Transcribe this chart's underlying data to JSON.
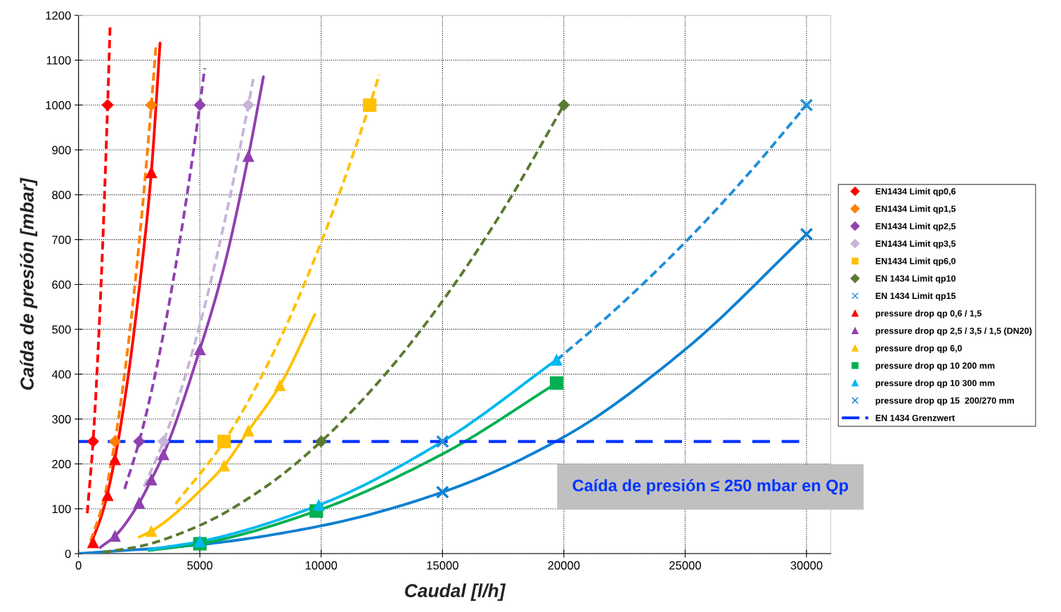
{
  "chart_data": {
    "type": "line",
    "xlabel": "Caudal [l/h]",
    "ylabel": "Caída de presión [mbar]",
    "xlim": [
      0,
      31000
    ],
    "ylim": [
      0,
      1200
    ],
    "xticks": [
      0,
      5000,
      10000,
      15000,
      20000,
      25000,
      30000
    ],
    "yticks": [
      0,
      100,
      200,
      300,
      400,
      500,
      600,
      700,
      800,
      900,
      1000,
      1100,
      1200
    ],
    "grid": true,
    "legend": "right",
    "annotations": [
      "Caída de presión ≤ 250 mbar en Qp"
    ],
    "ref_lines": [
      {
        "axis": "y",
        "value": 250,
        "label": "EN 1434 Grenzwert",
        "color": "#0033ff",
        "line_style": "dashed"
      }
    ],
    "series": [
      {
        "color": "#ff0000",
        "line_style": "dashed",
        "marker": "none",
        "x": [
          360,
          600,
          900,
          1200,
          1300
        ],
        "values": [
          90,
          250,
          562,
          1000,
          1174
        ]
      },
      {
        "color": "#ff8000",
        "line_style": "dashed",
        "marker": "none",
        "x": [
          500,
          1000,
          1500,
          2000,
          2500,
          3000,
          3200
        ],
        "values": [
          28,
          111,
          250,
          444,
          694,
          1000,
          1138
        ]
      },
      {
        "color": "#ff0000",
        "line_style": "solid",
        "marker": "none",
        "x": [
          500,
          1000,
          1500,
          2000,
          2500,
          3000,
          3360
        ],
        "values": [
          20,
          94,
          212,
          378,
          590,
          850,
          1138
        ]
      },
      {
        "color": "#9040b0",
        "line_style": "dashed",
        "marker": "none",
        "x": [
          1900,
          2500,
          3000,
          3500,
          4000,
          4500,
          5000,
          5200
        ],
        "values": [
          144,
          250,
          360,
          490,
          640,
          810,
          1000,
          1082
        ]
      },
      {
        "color": "#c8b4d8",
        "line_style": "dashed",
        "marker": "none",
        "x": [
          2700,
          3500,
          4000,
          5000,
          6000,
          7000,
          7200
        ],
        "values": [
          149,
          250,
          327,
          510,
          735,
          1000,
          1058
        ]
      },
      {
        "color": "#9040b0",
        "line_style": "solid",
        "marker": "none",
        "x": [
          900,
          1500,
          2500,
          3000,
          3500,
          5000,
          6000,
          7000,
          7620
        ],
        "values": [
          14,
          39,
          113,
          165,
          221,
          455,
          640,
          886,
          1063
        ]
      },
      {
        "color": "#ffc000",
        "line_style": "dashed",
        "marker": "none",
        "x": [
          4000,
          6000,
          8000,
          10000,
          12000,
          12400
        ],
        "values": [
          111,
          250,
          444,
          694,
          1000,
          1068
        ]
      },
      {
        "color": "#ffc000",
        "line_style": "solid",
        "marker": "none",
        "x": [
          2500,
          3000,
          4000,
          5000,
          6000,
          7000,
          8300,
          9740
        ],
        "values": [
          37,
          50,
          90,
          140,
          196,
          274,
          375,
          533
        ]
      },
      {
        "color": "#5a7a30",
        "line_style": "dashed",
        "marker": "none",
        "x": [
          1000,
          2500,
          5000,
          7500,
          10000,
          12500,
          15000,
          17500,
          20000
        ],
        "values": [
          3,
          16,
          63,
          141,
          250,
          391,
          563,
          766,
          1000
        ]
      },
      {
        "color": "#1f8fd8",
        "line_style": "dashed",
        "marker": "none",
        "x": [
          19700,
          22000,
          25000,
          27500,
          30000
        ],
        "values": [
          431,
          538,
          694,
          840,
          1000
        ]
      },
      {
        "color": "#0f80d0",
        "line_style": "solid",
        "marker": "none",
        "x": [
          0,
          5000,
          10000,
          15000,
          20000,
          25000,
          30000
        ],
        "values": [
          0,
          20,
          62,
          137,
          260,
          455,
          712
        ]
      },
      {
        "color": "#00b050",
        "line_style": "solid",
        "marker": "none",
        "x": [
          2900,
          5000,
          9800,
          15000,
          19700
        ],
        "values": [
          7,
          22,
          95,
          222,
          380
        ]
      },
      {
        "color": "#00b8f0",
        "line_style": "solid",
        "marker": "none",
        "x": [
          2900,
          5000,
          9900,
          15000,
          19700
        ],
        "values": [
          9,
          27,
          108,
          250,
          432
        ]
      },
      {
        "type": "scatter",
        "name": "EN1434 Limit qp0,6",
        "color": "#ff0000",
        "marker": "diamond",
        "x": [
          600,
          1200
        ],
        "values": [
          250,
          1000
        ]
      },
      {
        "type": "scatter",
        "name": "EN1434 Limit qp1,5",
        "color": "#ff8000",
        "marker": "diamond",
        "x": [
          1500,
          3000
        ],
        "values": [
          250,
          1000
        ]
      },
      {
        "type": "scatter",
        "name": "EN1434 Limit qp2,5",
        "color": "#9040b0",
        "marker": "diamond",
        "x": [
          2500,
          5000
        ],
        "values": [
          250,
          1000
        ]
      },
      {
        "type": "scatter",
        "name": "EN1434 Limit qp3,5",
        "color": "#c8b4d8",
        "marker": "diamond",
        "x": [
          3500,
          7000
        ],
        "values": [
          250,
          1000
        ]
      },
      {
        "type": "scatter",
        "name": "EN1434 Limit qp6,0",
        "color": "#ffc000",
        "marker": "square",
        "x": [
          6000,
          12000
        ],
        "values": [
          250,
          1000
        ]
      },
      {
        "type": "scatter",
        "name": "EN 1434 Limit qp10",
        "color": "#5a7a30",
        "marker": "diamond",
        "x": [
          10000,
          20000
        ],
        "values": [
          250,
          1000
        ]
      },
      {
        "type": "scatter",
        "name": "EN 1434 Limit qp15",
        "color": "#1f8fd8",
        "marker": "cross",
        "x": [
          15000,
          30000
        ],
        "values": [
          250,
          1000
        ]
      },
      {
        "type": "scatter",
        "name": "pressure drop qp 0,6 / 1,5",
        "color": "#ff0000",
        "marker": "triangle",
        "x": [
          600,
          1200,
          1500,
          3000
        ],
        "values": [
          25,
          130,
          210,
          850
        ]
      },
      {
        "type": "scatter",
        "name": "pressure drop qp 2,5 / 3,5 / 1,5 (DN20)",
        "color": "#9040b0",
        "marker": "triangle",
        "x": [
          1500,
          2500,
          3000,
          3500,
          5000,
          7000
        ],
        "values": [
          39,
          113,
          165,
          221,
          455,
          886
        ]
      },
      {
        "type": "scatter",
        "name": "pressure drop qp 6,0",
        "color": "#ffc000",
        "marker": "triangle",
        "x": [
          3000,
          6000,
          7000,
          8300
        ],
        "values": [
          50,
          196,
          274,
          375
        ]
      },
      {
        "type": "scatter",
        "name": "pressure drop qp 10 200 mm",
        "color": "#00b050",
        "marker": "square",
        "x": [
          5000,
          9800,
          19700
        ],
        "values": [
          22,
          95,
          380
        ]
      },
      {
        "type": "scatter",
        "name": "pressure drop qp 10 300 mm",
        "color": "#00b8f0",
        "marker": "triangle",
        "x": [
          5000,
          9900,
          19700
        ],
        "values": [
          27,
          108,
          432
        ]
      },
      {
        "type": "scatter",
        "name": "pressure drop qp 15  200/270 mm",
        "color": "#0f80d0",
        "marker": "cross",
        "x": [
          15000,
          30000
        ],
        "values": [
          137,
          712
        ]
      }
    ]
  }
}
